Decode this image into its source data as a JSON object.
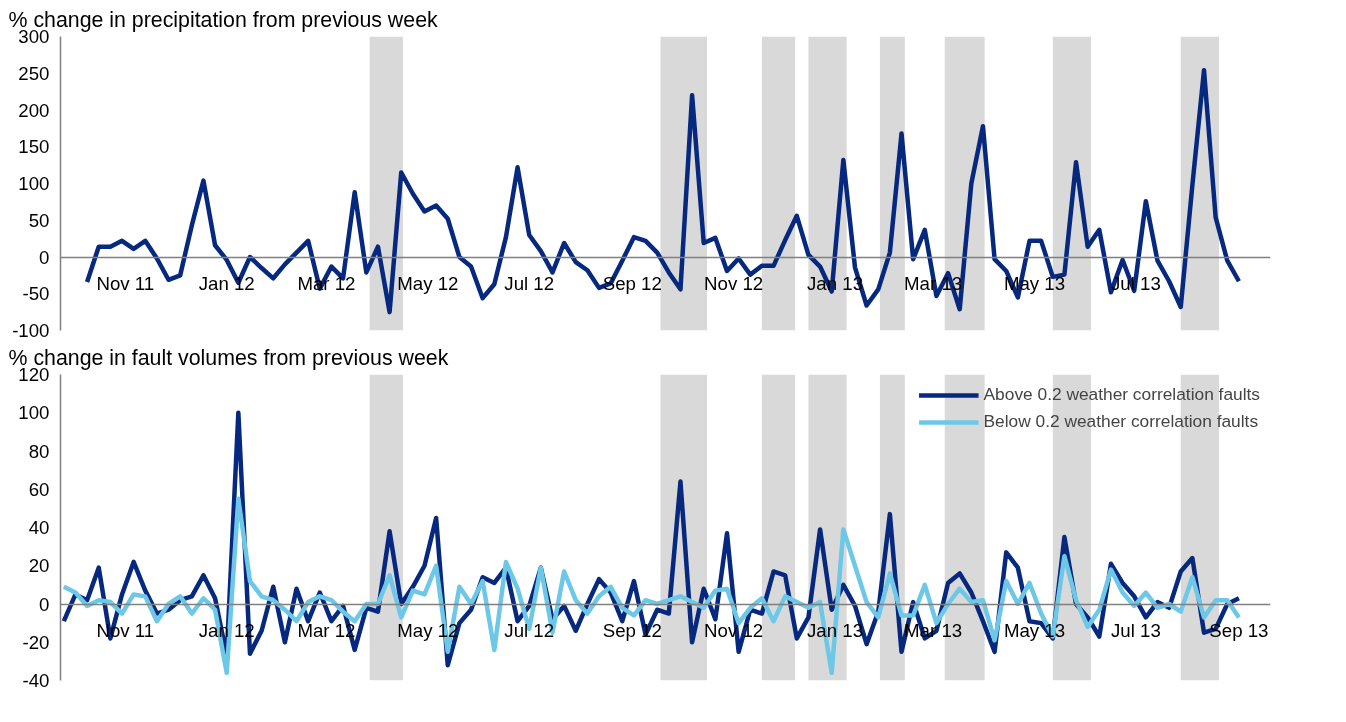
{
  "chart_data": [
    {
      "type": "line",
      "title": "% change in precipitation from previous week",
      "legend": false,
      "grid": false,
      "line_style": "solid",
      "marker": "none",
      "ylim": [
        -100,
        300
      ],
      "yticks": [
        -100,
        -50,
        0,
        50,
        100,
        150,
        200,
        250,
        300
      ],
      "xlim": [
        "2011-09-23",
        "2013-09-20"
      ],
      "xticks": [
        {
          "value": "2011-11-01",
          "label": "Nov 11"
        },
        {
          "value": "2012-01-01",
          "label": "Jan 12"
        },
        {
          "value": "2012-03-01",
          "label": "Mar 12"
        },
        {
          "value": "2012-05-01",
          "label": "May 12"
        },
        {
          "value": "2012-07-01",
          "label": "Jul 12"
        },
        {
          "value": "2012-09-01",
          "label": "Sep 12"
        },
        {
          "value": "2012-11-01",
          "label": "Nov 12"
        },
        {
          "value": "2013-01-01",
          "label": "Jan 13"
        },
        {
          "value": "2013-03-01",
          "label": "Mar 13"
        },
        {
          "value": "2013-05-01",
          "label": "May 13"
        },
        {
          "value": "2013-07-01",
          "label": "Jul 13"
        }
      ],
      "bands": [
        {
          "axis": "x",
          "from": "2012-03-27",
          "to": "2012-04-16",
          "color": "#d9d9d9"
        },
        {
          "axis": "x",
          "from": "2012-09-18",
          "to": "2012-10-16",
          "color": "#d9d9d9"
        },
        {
          "axis": "x",
          "from": "2012-11-18",
          "to": "2012-12-08",
          "color": "#d9d9d9"
        },
        {
          "axis": "x",
          "from": "2012-12-16",
          "to": "2013-01-08",
          "color": "#d9d9d9"
        },
        {
          "axis": "x",
          "from": "2013-01-28",
          "to": "2013-02-12",
          "color": "#d9d9d9"
        },
        {
          "axis": "x",
          "from": "2013-03-08",
          "to": "2013-04-01",
          "color": "#d9d9d9"
        },
        {
          "axis": "x",
          "from": "2013-05-12",
          "to": "2013-06-04",
          "color": "#d9d9d9"
        },
        {
          "axis": "x",
          "from": "2013-07-28",
          "to": "2013-08-20",
          "color": "#d9d9d9"
        }
      ],
      "series": [
        {
          "color": "#06287e",
          "x": [
            "2011-10-09",
            "2011-10-16",
            "2011-10-23",
            "2011-10-30",
            "2011-11-06",
            "2011-11-13",
            "2011-11-20",
            "2011-11-27",
            "2011-12-04",
            "2011-12-11",
            "2011-12-18",
            "2011-12-25",
            "2012-01-01",
            "2012-01-08",
            "2012-01-15",
            "2012-01-22",
            "2012-01-29",
            "2012-02-05",
            "2012-02-12",
            "2012-02-19",
            "2012-02-26",
            "2012-03-04",
            "2012-03-11",
            "2012-03-18",
            "2012-03-25",
            "2012-04-01",
            "2012-04-08",
            "2012-04-15",
            "2012-04-22",
            "2012-04-29",
            "2012-05-06",
            "2012-05-13",
            "2012-05-20",
            "2012-05-27",
            "2012-06-03",
            "2012-06-10",
            "2012-06-17",
            "2012-06-24",
            "2012-07-01",
            "2012-07-08",
            "2012-07-15",
            "2012-07-22",
            "2012-07-29",
            "2012-08-05",
            "2012-08-12",
            "2012-08-19",
            "2012-08-26",
            "2012-09-02",
            "2012-09-09",
            "2012-09-16",
            "2012-09-23",
            "2012-09-30",
            "2012-10-07",
            "2012-10-14",
            "2012-10-21",
            "2012-10-28",
            "2012-11-04",
            "2012-11-11",
            "2012-11-18",
            "2012-11-25",
            "2012-12-02",
            "2012-12-09",
            "2012-12-16",
            "2012-12-23",
            "2012-12-30",
            "2013-01-06",
            "2013-01-13",
            "2013-01-20",
            "2013-01-27",
            "2013-02-03",
            "2013-02-10",
            "2013-02-17",
            "2013-02-24",
            "2013-03-03",
            "2013-03-10",
            "2013-03-17",
            "2013-03-24",
            "2013-03-31",
            "2013-04-07",
            "2013-04-14",
            "2013-04-21",
            "2013-04-28",
            "2013-05-05",
            "2013-05-12",
            "2013-05-19",
            "2013-05-26",
            "2013-06-02",
            "2013-06-09",
            "2013-06-16",
            "2013-06-23",
            "2013-06-30",
            "2013-07-07",
            "2013-07-14",
            "2013-07-21",
            "2013-07-28",
            "2013-08-04",
            "2013-08-11",
            "2013-08-18",
            "2013-08-25",
            "2013-09-01"
          ],
          "values": [
            -34,
            14,
            14,
            22,
            11,
            22,
            -2,
            -31,
            -25,
            43,
            104,
            16,
            -4,
            -35,
            0,
            -15,
            -29,
            -10,
            6,
            22,
            -43,
            -13,
            -29,
            88,
            -21,
            14,
            -75,
            115,
            86,
            62,
            70,
            52,
            0,
            -13,
            -56,
            -37,
            27,
            122,
            30,
            8,
            -21,
            19,
            -7,
            -18,
            -42,
            -36,
            -5,
            27,
            22,
            6,
            -21,
            -44,
            220,
            19,
            26,
            -19,
            -2,
            -24,
            -12,
            -12,
            23,
            56,
            3,
            -13,
            -47,
            132,
            -14,
            -66,
            -44,
            6,
            168,
            -3,
            37,
            -53,
            -22,
            -71,
            100,
            178,
            -3,
            -19,
            -55,
            22,
            22,
            -27,
            -24,
            129,
            14,
            37,
            -48,
            -4,
            -46,
            76,
            -5,
            -33,
            -68,
            98,
            254,
            54,
            -5,
            -33
          ]
        }
      ]
    },
    {
      "type": "line",
      "title": "% change in fault volumes from previous week",
      "legend": "top right",
      "grid": false,
      "line_style": "solid",
      "marker": "none",
      "ylim": [
        -40,
        120
      ],
      "yticks": [
        -40,
        -20,
        0,
        20,
        40,
        60,
        80,
        100,
        120
      ],
      "xlim": [
        "2011-09-23",
        "2013-09-20"
      ],
      "x": [
        "2011-09-25",
        "2011-10-02",
        "2011-10-09",
        "2011-10-16",
        "2011-10-23",
        "2011-10-30",
        "2011-11-06",
        "2011-11-13",
        "2011-11-20",
        "2011-11-27",
        "2011-12-04",
        "2011-12-11",
        "2011-12-18",
        "2011-12-25",
        "2012-01-01",
        "2012-01-08",
        "2012-01-15",
        "2012-01-22",
        "2012-01-29",
        "2012-02-05",
        "2012-02-12",
        "2012-02-19",
        "2012-02-26",
        "2012-03-04",
        "2012-03-11",
        "2012-03-18",
        "2012-03-25",
        "2012-04-01",
        "2012-04-08",
        "2012-04-15",
        "2012-04-22",
        "2012-04-29",
        "2012-05-06",
        "2012-05-13",
        "2012-05-20",
        "2012-05-27",
        "2012-06-03",
        "2012-06-10",
        "2012-06-17",
        "2012-06-24",
        "2012-07-01",
        "2012-07-08",
        "2012-07-15",
        "2012-07-22",
        "2012-07-29",
        "2012-08-05",
        "2012-08-12",
        "2012-08-19",
        "2012-08-26",
        "2012-09-02",
        "2012-09-09",
        "2012-09-16",
        "2012-09-23",
        "2012-09-30",
        "2012-10-07",
        "2012-10-14",
        "2012-10-21",
        "2012-10-28",
        "2012-11-04",
        "2012-11-11",
        "2012-11-18",
        "2012-11-25",
        "2012-12-02",
        "2012-12-09",
        "2012-12-16",
        "2012-12-23",
        "2012-12-30",
        "2013-01-06",
        "2013-01-13",
        "2013-01-20",
        "2013-01-27",
        "2013-02-03",
        "2013-02-10",
        "2013-02-17",
        "2013-02-24",
        "2013-03-03",
        "2013-03-10",
        "2013-03-17",
        "2013-03-24",
        "2013-03-31",
        "2013-04-07",
        "2013-04-14",
        "2013-04-21",
        "2013-04-28",
        "2013-05-05",
        "2013-05-12",
        "2013-05-19",
        "2013-05-26",
        "2013-06-02",
        "2013-06-09",
        "2013-06-16",
        "2013-06-23",
        "2013-06-30",
        "2013-07-07",
        "2013-07-14",
        "2013-07-21",
        "2013-07-28",
        "2013-08-04",
        "2013-08-11",
        "2013-08-18",
        "2013-08-25",
        "2013-09-01"
      ],
      "xticks": [
        {
          "value": "2011-11-01",
          "label": "Nov 11"
        },
        {
          "value": "2012-01-01",
          "label": "Jan 12"
        },
        {
          "value": "2012-03-01",
          "label": "Mar 12"
        },
        {
          "value": "2012-05-01",
          "label": "May 12"
        },
        {
          "value": "2012-07-01",
          "label": "Jul 12"
        },
        {
          "value": "2012-09-01",
          "label": "Sep 12"
        },
        {
          "value": "2012-11-01",
          "label": "Nov 12"
        },
        {
          "value": "2013-01-01",
          "label": "Jan 13"
        },
        {
          "value": "2013-03-01",
          "label": "Mar 13"
        },
        {
          "value": "2013-05-01",
          "label": "May 13"
        },
        {
          "value": "2013-07-01",
          "label": "Jul 13"
        },
        {
          "value": "2013-09-01",
          "label": "Sep 13"
        }
      ],
      "bands": [
        {
          "axis": "x",
          "from": "2012-03-27",
          "to": "2012-04-16",
          "color": "#d9d9d9"
        },
        {
          "axis": "x",
          "from": "2012-09-18",
          "to": "2012-10-16",
          "color": "#d9d9d9"
        },
        {
          "axis": "x",
          "from": "2012-11-18",
          "to": "2012-12-08",
          "color": "#d9d9d9"
        },
        {
          "axis": "x",
          "from": "2012-12-16",
          "to": "2013-01-08",
          "color": "#d9d9d9"
        },
        {
          "axis": "x",
          "from": "2013-01-28",
          "to": "2013-02-12",
          "color": "#d9d9d9"
        },
        {
          "axis": "x",
          "from": "2013-03-08",
          "to": "2013-04-01",
          "color": "#d9d9d9"
        },
        {
          "axis": "x",
          "from": "2013-05-12",
          "to": "2013-06-04",
          "color": "#d9d9d9"
        },
        {
          "axis": "x",
          "from": "2013-07-28",
          "to": "2013-08-20",
          "color": "#d9d9d9"
        }
      ],
      "series": [
        {
          "name": "Above 0.2 weather correlation faults",
          "color": "#06287e",
          "values": [
            -9,
            5,
            2,
            19,
            -18,
            5,
            22,
            7,
            -5,
            -3,
            2,
            4,
            15,
            3,
            -27,
            100,
            -26,
            -14,
            9,
            -20,
            8,
            -9,
            6,
            -9,
            -1,
            -24,
            -2,
            -4,
            38,
            0,
            9,
            20,
            45,
            -32,
            -10,
            -3,
            14,
            11,
            19,
            -9,
            -1,
            19,
            -8,
            -1,
            -14,
            0,
            13,
            6,
            -9,
            12,
            -16,
            -3,
            -5,
            64,
            -20,
            8,
            -8,
            37,
            -25,
            -3,
            -5,
            17,
            15,
            -18,
            -7,
            39,
            -3,
            10,
            -1,
            -21,
            -4,
            47,
            -25,
            1,
            -18,
            -14,
            11,
            16,
            6,
            -9,
            -25,
            27,
            19,
            -9,
            -10,
            -18,
            35,
            0,
            -7,
            -17,
            21,
            11,
            4,
            -7,
            1,
            -2,
            17,
            24,
            -15,
            -13,
            0,
            3
          ]
        },
        {
          "name": "Below 0.2 weather correlation faults",
          "color": "#6dc8e8",
          "values": [
            9,
            6,
            -1,
            2,
            1,
            -5,
            5,
            4,
            -9,
            0,
            4,
            -5,
            3,
            -3,
            -36,
            55,
            12,
            4,
            2,
            -3,
            -9,
            1,
            4,
            2,
            -4,
            -9,
            0,
            0,
            15,
            -7,
            7,
            5,
            20,
            -25,
            9,
            0,
            12,
            -24,
            22,
            8,
            -13,
            19,
            -15,
            17,
            2,
            -5,
            4,
            9,
            -2,
            -6,
            2,
            0,
            2,
            4,
            1,
            -2,
            7,
            8,
            -10,
            -2,
            3,
            -9,
            4,
            1,
            -2,
            1,
            -36,
            39,
            20,
            1,
            -7,
            16,
            -6,
            -6,
            10,
            -10,
            0,
            8,
            1,
            2,
            -19,
            12,
            0,
            11,
            -5,
            -17,
            25,
            2,
            -12,
            -3,
            18,
            6,
            -1,
            6,
            -2,
            0,
            -4,
            14,
            -7,
            2,
            2,
            -7
          ]
        }
      ]
    }
  ]
}
